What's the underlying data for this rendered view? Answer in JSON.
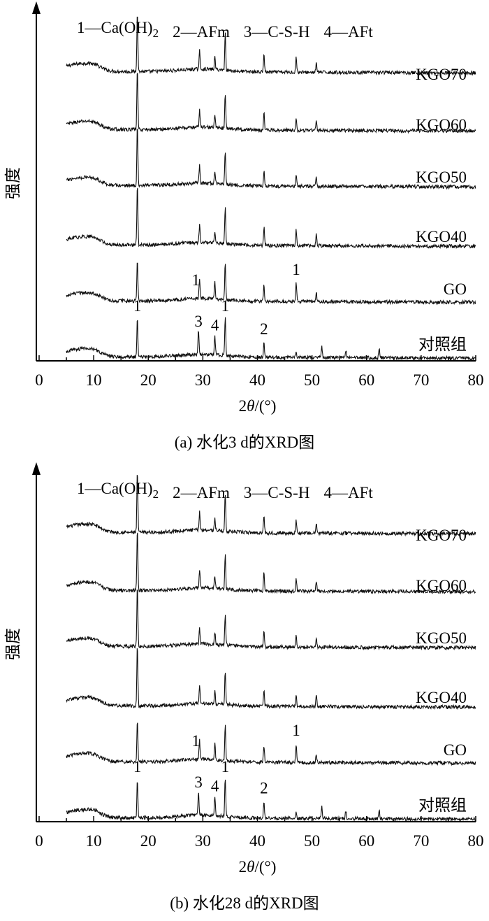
{
  "chart_data": [
    {
      "type": "line",
      "caption": "(a) 水化3 d的XRD图",
      "xlabel": "2θ/(°)",
      "ylabel": "强度",
      "xlim": [
        0,
        80
      ],
      "x_ticks": [
        0,
        10,
        20,
        30,
        40,
        50,
        60,
        70,
        80
      ],
      "legend_items": [
        {
          "num": "1",
          "name": "Ca(OH)",
          "sub": "2"
        },
        {
          "num": "2",
          "name": "AFm"
        },
        {
          "num": "3",
          "name": "C-S-H"
        },
        {
          "num": "4",
          "name": "AFt"
        }
      ],
      "series": [
        {
          "name": "KGO70",
          "peaks": [
            [
              18.0,
              1.0
            ],
            [
              29.4,
              0.3
            ],
            [
              32.2,
              0.2
            ],
            [
              34.1,
              0.6
            ],
            [
              41.2,
              0.3
            ],
            [
              47.1,
              0.25
            ],
            [
              50.8,
              0.15
            ]
          ]
        },
        {
          "name": "KGO60",
          "peaks": [
            [
              18.0,
              1.0
            ],
            [
              29.4,
              0.3
            ],
            [
              32.2,
              0.2
            ],
            [
              34.1,
              0.55
            ],
            [
              41.2,
              0.3
            ],
            [
              47.1,
              0.2
            ],
            [
              50.8,
              0.15
            ]
          ]
        },
        {
          "name": "KGO50",
          "peaks": [
            [
              18.0,
              1.0
            ],
            [
              29.4,
              0.28
            ],
            [
              32.2,
              0.2
            ],
            [
              34.1,
              0.55
            ],
            [
              41.2,
              0.25
            ],
            [
              47.1,
              0.2
            ],
            [
              50.8,
              0.15
            ]
          ]
        },
        {
          "name": "KGO40",
          "peaks": [
            [
              18.0,
              1.0
            ],
            [
              29.4,
              0.3
            ],
            [
              32.2,
              0.2
            ],
            [
              34.1,
              0.6
            ],
            [
              41.2,
              0.3
            ],
            [
              47.1,
              0.25
            ],
            [
              50.8,
              0.2
            ]
          ]
        },
        {
          "name": "GO",
          "peaks": [
            [
              18.0,
              1.0
            ],
            [
              29.4,
              0.5
            ],
            [
              32.2,
              0.4
            ],
            [
              34.1,
              0.9
            ],
            [
              41.2,
              0.4
            ],
            [
              47.1,
              0.45
            ],
            [
              50.8,
              0.2
            ]
          ]
        },
        {
          "name": "对照组",
          "peaks": [
            [
              18.0,
              1.0
            ],
            [
              29.2,
              0.6
            ],
            [
              32.2,
              0.5
            ],
            [
              34.1,
              1.0
            ],
            [
              41.2,
              0.4
            ],
            [
              47.1,
              0.15
            ],
            [
              51.8,
              0.3
            ],
            [
              56.2,
              0.2
            ],
            [
              62.3,
              0.25
            ]
          ]
        }
      ],
      "peak_labels": [
        {
          "text": "1",
          "x": 18.0,
          "series": "对照组"
        },
        {
          "text": "3",
          "x": 29.2,
          "series": "对照组"
        },
        {
          "text": "4",
          "x": 32.2,
          "series": "对照组"
        },
        {
          "text": "1",
          "x": 34.1,
          "series": "对照组"
        },
        {
          "text": "2",
          "x": 41.2,
          "series": "对照组"
        },
        {
          "text": "1",
          "x": 28.7,
          "series": "GO"
        },
        {
          "text": "1",
          "x": 47.1,
          "series": "GO"
        }
      ]
    },
    {
      "type": "line",
      "caption": "(b) 水化28 d的XRD图",
      "xlabel": "2θ/(°)",
      "ylabel": "强度",
      "xlim": [
        0,
        80
      ],
      "x_ticks": [
        0,
        10,
        20,
        30,
        40,
        50,
        60,
        70,
        80
      ],
      "legend_items": [
        {
          "num": "1",
          "name": "Ca(OH)",
          "sub": "2"
        },
        {
          "num": "2",
          "name": "AFm"
        },
        {
          "num": "3",
          "name": "C-S-H"
        },
        {
          "num": "4",
          "name": "AFt"
        }
      ],
      "series": [
        {
          "name": "KGO70",
          "peaks": [
            [
              18.0,
              1.0
            ],
            [
              29.4,
              0.3
            ],
            [
              32.2,
              0.2
            ],
            [
              34.1,
              0.6
            ],
            [
              41.2,
              0.3
            ],
            [
              47.1,
              0.2
            ],
            [
              50.8,
              0.15
            ]
          ]
        },
        {
          "name": "KGO60",
          "peaks": [
            [
              18.0,
              1.0
            ],
            [
              29.4,
              0.3
            ],
            [
              32.2,
              0.2
            ],
            [
              34.1,
              0.55
            ],
            [
              41.2,
              0.3
            ],
            [
              47.1,
              0.2
            ],
            [
              50.8,
              0.15
            ]
          ]
        },
        {
          "name": "KGO50",
          "peaks": [
            [
              18.0,
              1.0
            ],
            [
              29.4,
              0.25
            ],
            [
              32.2,
              0.2
            ],
            [
              34.1,
              0.5
            ],
            [
              41.2,
              0.25
            ],
            [
              47.1,
              0.2
            ],
            [
              50.8,
              0.15
            ]
          ]
        },
        {
          "name": "KGO40",
          "peaks": [
            [
              18.0,
              1.0
            ],
            [
              29.4,
              0.3
            ],
            [
              32.2,
              0.2
            ],
            [
              34.1,
              0.55
            ],
            [
              41.2,
              0.25
            ],
            [
              47.1,
              0.2
            ],
            [
              50.8,
              0.2
            ]
          ]
        },
        {
          "name": "GO",
          "peaks": [
            [
              18.0,
              1.0
            ],
            [
              29.4,
              0.45
            ],
            [
              32.2,
              0.4
            ],
            [
              34.1,
              0.85
            ],
            [
              41.2,
              0.4
            ],
            [
              47.1,
              0.45
            ],
            [
              50.8,
              0.2
            ]
          ]
        },
        {
          "name": "对照组",
          "peaks": [
            [
              18.0,
              1.0
            ],
            [
              29.2,
              0.6
            ],
            [
              32.2,
              0.5
            ],
            [
              34.1,
              1.0
            ],
            [
              41.2,
              0.45
            ],
            [
              47.1,
              0.15
            ],
            [
              51.8,
              0.3
            ],
            [
              56.2,
              0.2
            ],
            [
              62.3,
              0.25
            ]
          ]
        }
      ],
      "peak_labels": [
        {
          "text": "1",
          "x": 18.0,
          "series": "对照组"
        },
        {
          "text": "3",
          "x": 29.2,
          "series": "对照组"
        },
        {
          "text": "4",
          "x": 32.2,
          "series": "对照组"
        },
        {
          "text": "1",
          "x": 34.1,
          "series": "对照组"
        },
        {
          "text": "2",
          "x": 41.2,
          "series": "对照组"
        },
        {
          "text": "1",
          "x": 28.7,
          "series": "GO"
        },
        {
          "text": "1",
          "x": 47.1,
          "series": "GO"
        }
      ]
    }
  ]
}
